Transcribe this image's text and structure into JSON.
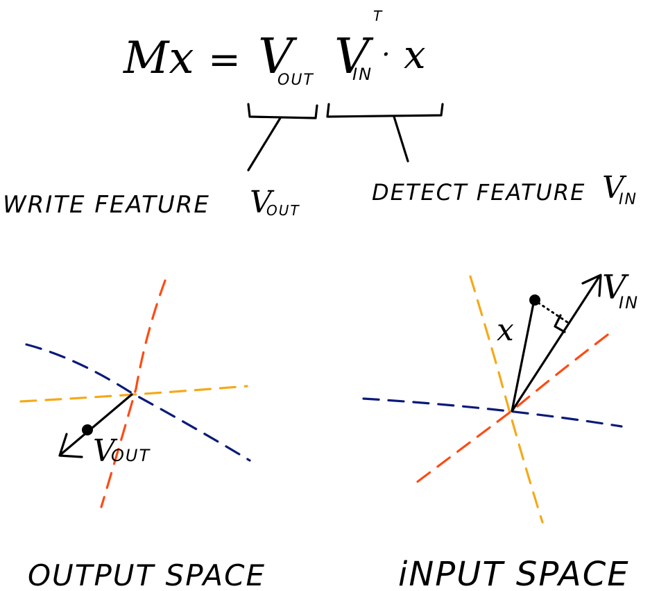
{
  "equation": {
    "lhs": "Mx",
    "equals": "=",
    "v_out": "V",
    "v_out_sub": "OUT",
    "v_in": "V",
    "v_in_sub": "IN",
    "transpose": "T",
    "dot": "·",
    "x": "x"
  },
  "annotations": {
    "write_label": "WRITE FEATURE",
    "write_v": "V",
    "write_sub": "OUT",
    "detect_label": "DETECT FEATURE",
    "detect_v": "V",
    "detect_sub": "IN"
  },
  "output_space": {
    "vector_v": "V",
    "vector_sub": "OUT",
    "caption": "OUTPUT SPACE"
  },
  "input_space": {
    "vector_v": "V",
    "vector_sub": "IN",
    "x_label": "x",
    "caption": "iNPUT SPACE"
  },
  "colors": {
    "ink": "#000000",
    "navy": "#0a1a78",
    "orange_red": "#ff4a12",
    "amber": "#f5a918"
  }
}
